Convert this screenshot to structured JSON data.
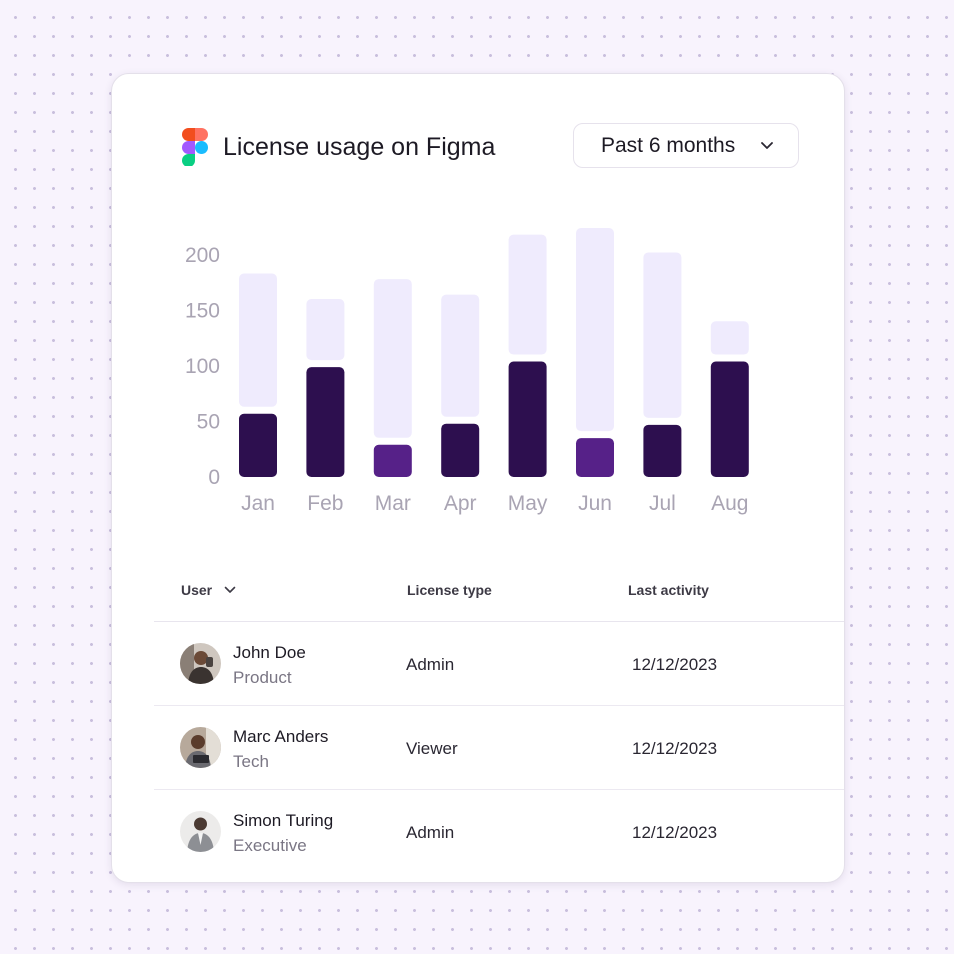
{
  "header": {
    "title": "License usage on Figma",
    "logo_icon": "figma-logo-icon",
    "range_select": {
      "value": "Past 6 months",
      "icon": "chevron-down-icon"
    }
  },
  "chart_data": {
    "type": "bar",
    "stacked": true,
    "categories": [
      "Jan",
      "Feb",
      "Mar",
      "Apr",
      "May",
      "Jun",
      "Jul",
      "Aug"
    ],
    "series": [
      {
        "values": [
          57,
          99,
          29,
          48,
          104,
          35,
          47,
          104
        ],
        "color": "#2d0f4f"
      },
      {
        "values": [
          120,
          55,
          143,
          110,
          108,
          183,
          149,
          30
        ],
        "color": "#efebfd"
      }
    ],
    "highlight_bars": [
      "Mar",
      "Jun"
    ],
    "highlight_color": "#562188",
    "y_ticks": [
      0,
      50,
      100,
      150,
      200
    ],
    "ylim": [
      0,
      210
    ],
    "grid": false,
    "legend": "none"
  },
  "table": {
    "columns": {
      "user": "User",
      "license_type": "License type",
      "last_activity": "Last activity"
    },
    "sort_icon": "chevron-down-icon",
    "rows": [
      {
        "name": "John Doe",
        "department": "Product",
        "license": "Admin",
        "last_activity": "12/12/2023",
        "avatar": "avatar-photo"
      },
      {
        "name": "Marc Anders",
        "department": "Tech",
        "license": "Viewer",
        "last_activity": "12/12/2023",
        "avatar": "avatar-photo"
      },
      {
        "name": "Simon Turing",
        "department": "Executive",
        "license": "Admin",
        "last_activity": "12/12/2023",
        "avatar": "avatar-photo"
      }
    ]
  },
  "colors": {
    "background": "#f8f3fd",
    "card": "#ffffff",
    "dark_bar": "#2d0f4f",
    "light_bar": "#efebfd",
    "accent_bar": "#562188",
    "axis_text": "#a9a4b3"
  }
}
